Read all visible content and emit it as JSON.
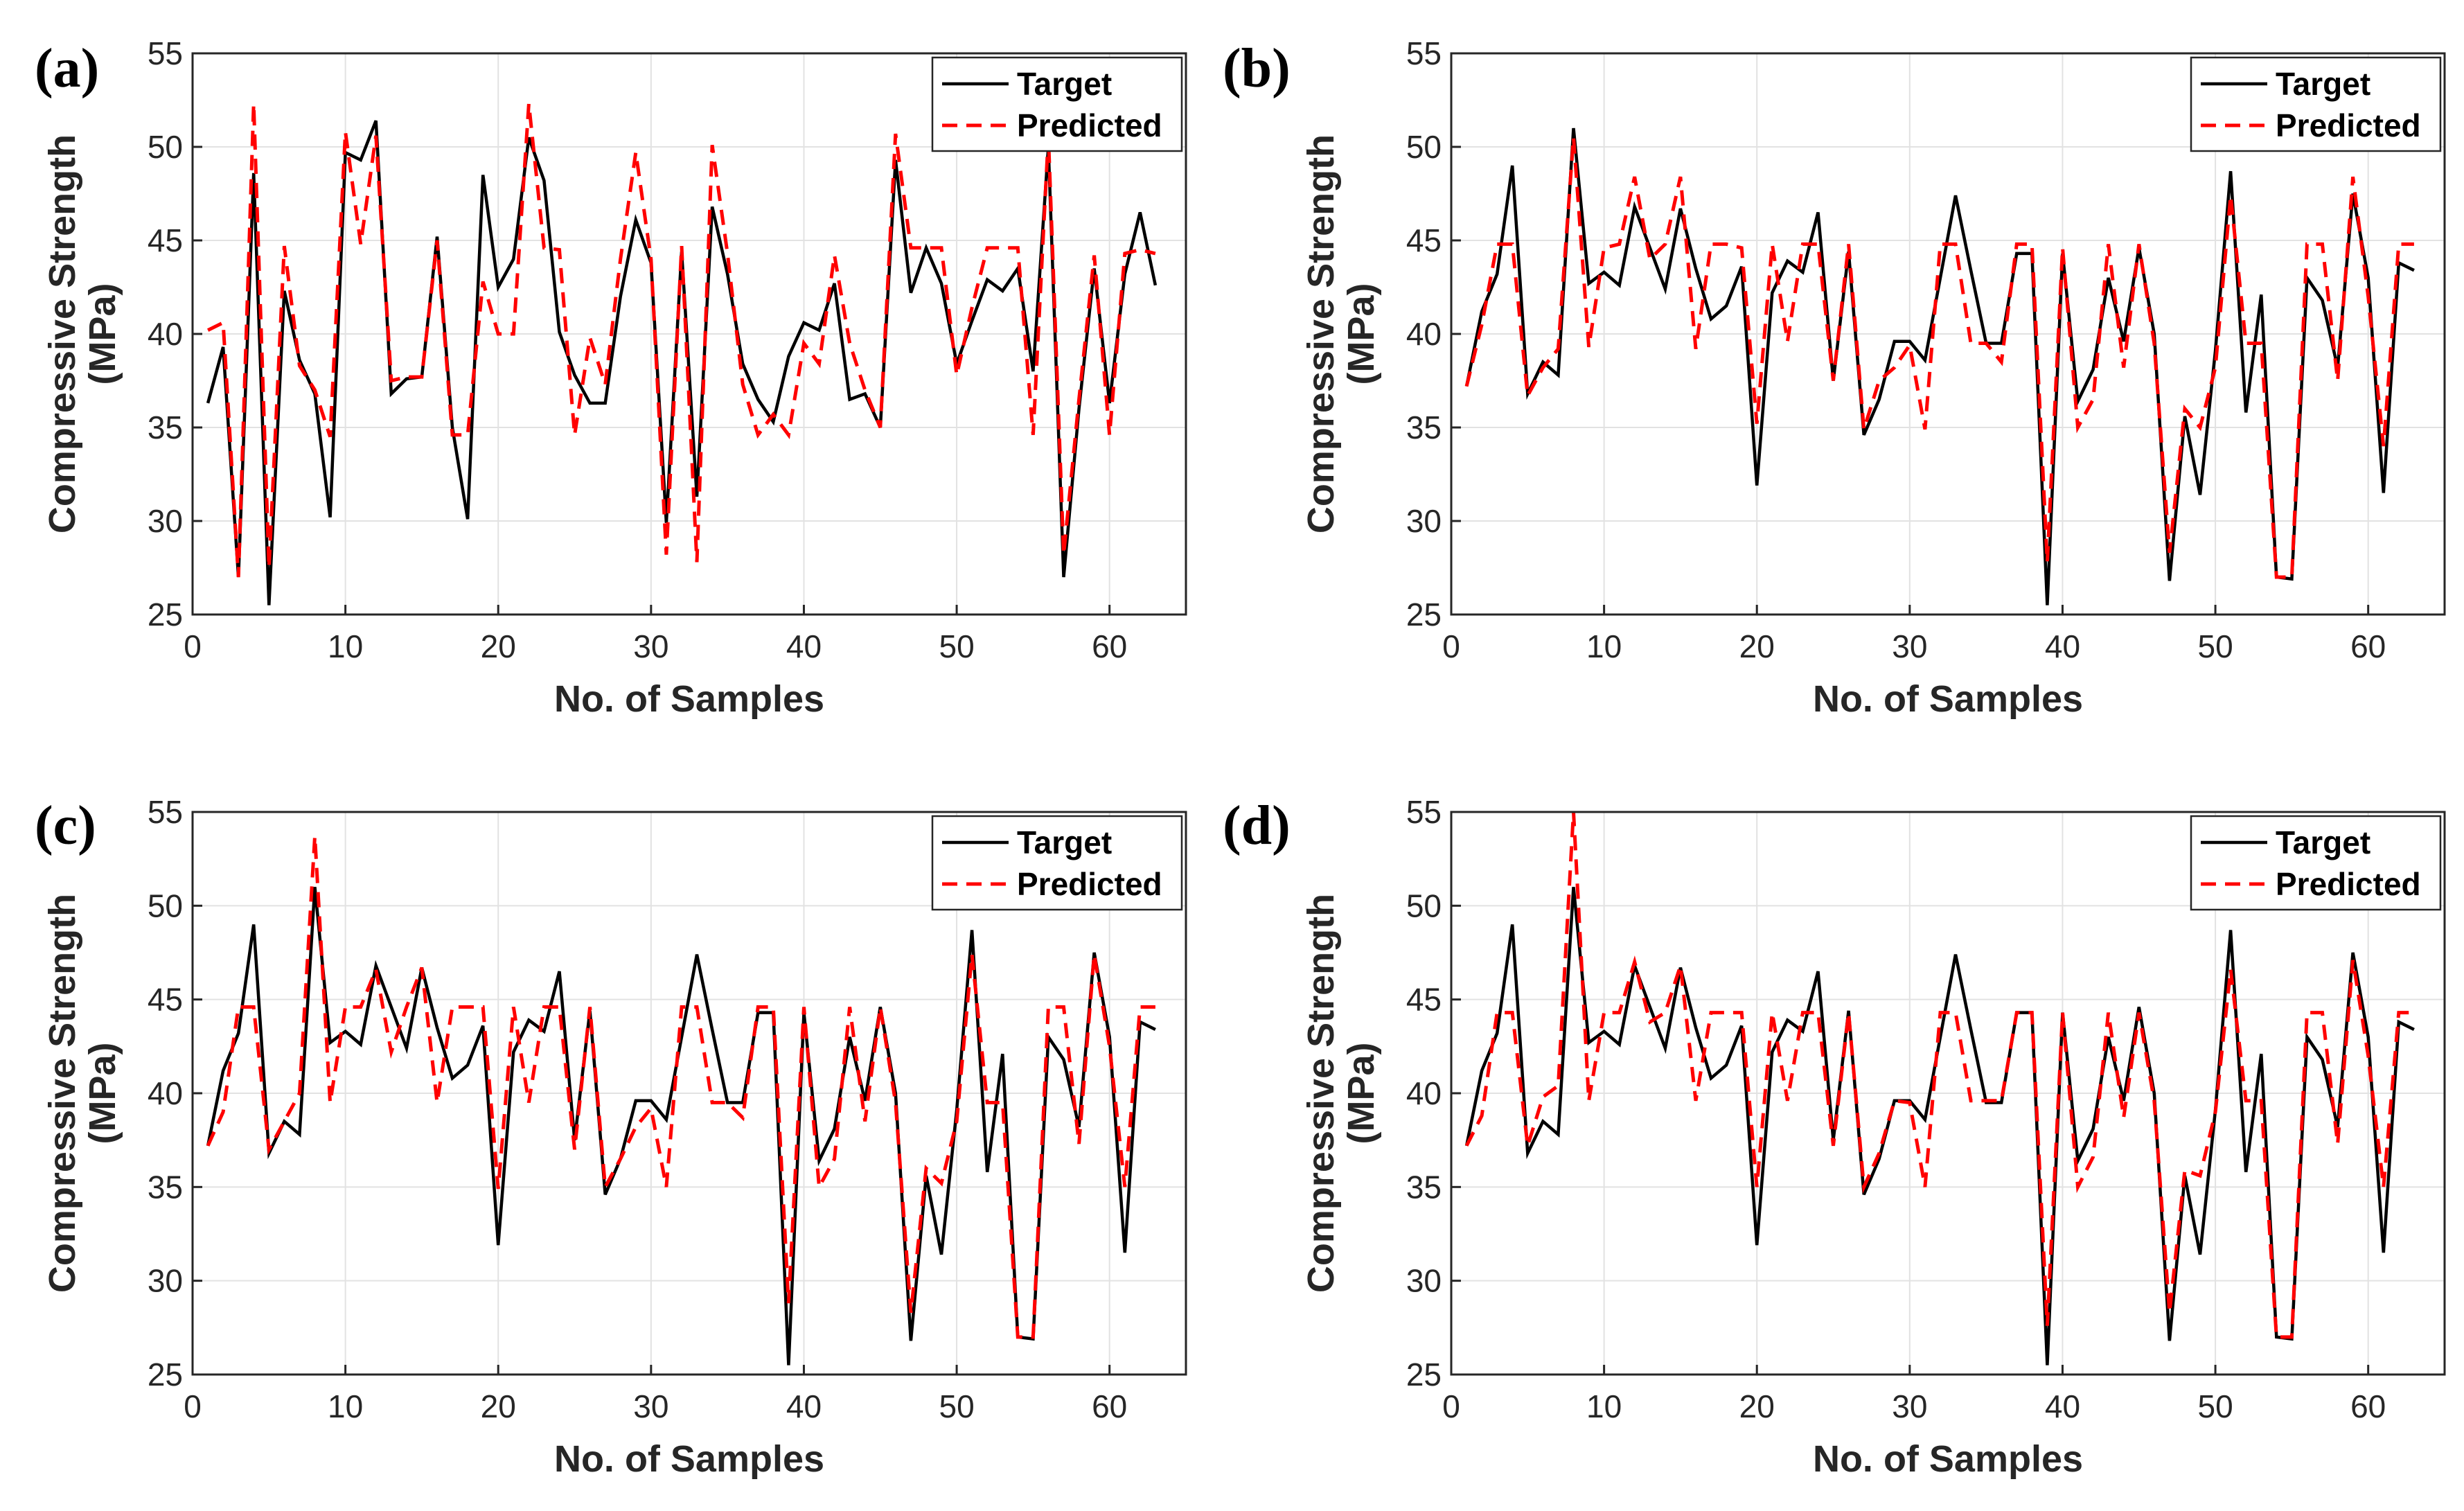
{
  "chart_data": [
    {
      "panel": "(a)",
      "type": "line",
      "xlabel": "No. of Samples",
      "ylabel_line1": "Compressive Strength",
      "ylabel_line2": "(MPa)",
      "xlim": [
        0,
        65
      ],
      "ylim": [
        25,
        55
      ],
      "xticks": [
        0,
        10,
        20,
        30,
        40,
        50,
        60
      ],
      "yticks": [
        25,
        30,
        35,
        40,
        45,
        50,
        55
      ],
      "legend": "top-right",
      "grid": true,
      "series": [
        {
          "name": "Target",
          "style": "solid",
          "color": "#000000",
          "values": [
            36.3,
            39.3,
            27.0,
            48.6,
            25.5,
            42.3,
            38.6,
            36.8,
            30.2,
            49.7,
            49.3,
            51.4,
            36.8,
            37.6,
            37.7,
            45.2,
            35.0,
            30.1,
            48.5,
            42.5,
            44.0,
            50.5,
            48.2,
            40.1,
            37.8,
            36.3,
            36.3,
            42.0,
            46.1,
            43.8,
            29.9,
            44.4,
            31.3,
            46.8,
            43.2,
            38.4,
            36.5,
            35.3,
            38.8,
            40.6,
            40.2,
            42.7,
            36.5,
            36.8,
            35.0,
            49.3,
            42.2,
            44.6,
            42.7,
            38.4,
            40.7,
            42.9,
            42.3,
            43.5,
            38.0,
            50.0,
            27.0,
            36.0,
            43.5,
            36.3,
            43.2,
            46.5,
            42.6
          ]
        },
        {
          "name": "Predicted",
          "style": "dashed",
          "color": "#ff0000",
          "values": [
            40.2,
            40.6,
            27.0,
            52.3,
            27.5,
            44.7,
            38.3,
            37.0,
            34.5,
            50.8,
            44.8,
            50.6,
            37.5,
            37.7,
            37.7,
            45.0,
            34.6,
            34.6,
            42.8,
            40.0,
            40.0,
            52.3,
            44.6,
            44.5,
            34.6,
            39.8,
            37.3,
            44.0,
            49.7,
            44.0,
            28.2,
            44.7,
            27.8,
            50.1,
            44.3,
            37.3,
            34.6,
            35.7,
            34.6,
            39.5,
            38.4,
            44.2,
            39.5,
            37.0,
            35.0,
            50.7,
            44.6,
            44.6,
            44.6,
            37.8,
            41.4,
            44.6,
            44.6,
            44.6,
            34.6,
            50.6,
            28.2,
            36.5,
            44.2,
            34.6,
            44.3,
            44.5,
            44.3
          ]
        }
      ]
    },
    {
      "panel": "(b)",
      "type": "line",
      "xlabel": "No. of Samples",
      "ylabel_line1": "Compressive Strength",
      "ylabel_line2": "(MPa)",
      "xlim": [
        0,
        65
      ],
      "ylim": [
        25,
        55
      ],
      "xticks": [
        0,
        10,
        20,
        30,
        40,
        50,
        60
      ],
      "yticks": [
        25,
        30,
        35,
        40,
        45,
        50,
        55
      ],
      "legend": "top-right",
      "grid": true,
      "series": [
        {
          "name": "Target",
          "style": "solid",
          "color": "#000000",
          "values": [
            37.2,
            41.2,
            43.2,
            49.0,
            36.8,
            38.5,
            37.8,
            51.0,
            42.7,
            43.3,
            42.6,
            46.8,
            44.6,
            42.4,
            46.7,
            43.5,
            40.8,
            41.5,
            43.6,
            31.9,
            42.2,
            43.9,
            43.3,
            46.5,
            37.5,
            44.4,
            34.6,
            36.5,
            39.6,
            39.6,
            38.6,
            43.0,
            47.4,
            43.4,
            39.5,
            39.5,
            44.3,
            44.3,
            25.5,
            44.3,
            36.4,
            38.1,
            43.0,
            39.6,
            44.6,
            40.0,
            26.8,
            35.6,
            31.4,
            39.1,
            48.7,
            35.8,
            42.1,
            27.0,
            26.9,
            43.0,
            41.8,
            38.2,
            47.5,
            43.0,
            31.5,
            43.8,
            43.4
          ]
        },
        {
          "name": "Predicted",
          "style": "dashed",
          "color": "#ff0000",
          "values": [
            37.2,
            40.5,
            44.8,
            44.8,
            36.7,
            38.2,
            39.2,
            50.5,
            39.3,
            44.6,
            44.8,
            48.4,
            44.0,
            44.8,
            48.4,
            39.2,
            44.8,
            44.8,
            44.6,
            35.2,
            44.8,
            39.6,
            44.8,
            44.8,
            37.5,
            44.8,
            34.9,
            37.5,
            38.2,
            39.4,
            34.9,
            44.8,
            44.8,
            39.5,
            39.5,
            38.5,
            44.8,
            44.8,
            27.8,
            44.6,
            35.0,
            36.5,
            44.8,
            38.2,
            44.8,
            39.5,
            28.3,
            36.0,
            35.0,
            38.2,
            47.4,
            39.5,
            39.5,
            27.0,
            27.0,
            44.8,
            44.8,
            37.5,
            48.4,
            42.0,
            34.0,
            44.8,
            44.8
          ]
        }
      ]
    },
    {
      "panel": "(c)",
      "type": "line",
      "xlabel": "No. of Samples",
      "ylabel_line1": "Compressive Strength",
      "ylabel_line2": "(MPa)",
      "xlim": [
        0,
        65
      ],
      "ylim": [
        25,
        55
      ],
      "xticks": [
        0,
        10,
        20,
        30,
        40,
        50,
        60
      ],
      "yticks": [
        25,
        30,
        35,
        40,
        45,
        50,
        55
      ],
      "legend": "top-right",
      "grid": true,
      "series": [
        {
          "name": "Target",
          "style": "solid",
          "color": "#000000",
          "values": [
            37.2,
            41.2,
            43.2,
            49.0,
            36.8,
            38.5,
            37.8,
            51.0,
            42.7,
            43.3,
            42.6,
            46.8,
            44.6,
            42.4,
            46.7,
            43.5,
            40.8,
            41.5,
            43.6,
            31.9,
            42.2,
            43.9,
            43.3,
            46.5,
            37.5,
            44.4,
            34.6,
            36.5,
            39.6,
            39.6,
            38.6,
            43.0,
            47.4,
            43.4,
            39.5,
            39.5,
            44.3,
            44.3,
            25.5,
            44.3,
            36.4,
            38.1,
            43.0,
            39.6,
            44.6,
            40.0,
            26.8,
            35.6,
            31.4,
            39.1,
            48.7,
            35.8,
            42.1,
            27.0,
            26.9,
            43.0,
            41.8,
            38.2,
            47.5,
            43.0,
            31.5,
            43.8,
            43.4
          ]
        },
        {
          "name": "Predicted",
          "style": "dashed",
          "color": "#ff0000",
          "values": [
            37.2,
            39.0,
            44.6,
            44.6,
            37.0,
            38.5,
            40.0,
            53.7,
            39.5,
            44.6,
            44.6,
            46.6,
            42.2,
            44.6,
            46.7,
            39.5,
            44.6,
            44.6,
            44.6,
            34.9,
            44.6,
            39.5,
            44.6,
            44.6,
            37.0,
            44.6,
            35.0,
            36.5,
            38.2,
            39.2,
            35.0,
            44.6,
            44.6,
            39.5,
            39.5,
            38.7,
            44.6,
            44.6,
            28.8,
            44.6,
            35.0,
            36.5,
            44.6,
            38.5,
            44.6,
            39.5,
            28.3,
            36.0,
            35.2,
            38.5,
            47.4,
            39.5,
            39.5,
            27.0,
            27.0,
            44.6,
            44.6,
            37.3,
            47.4,
            42.5,
            35.0,
            44.6,
            44.6
          ]
        }
      ]
    },
    {
      "panel": "(d)",
      "type": "line",
      "xlabel": "No. of Samples",
      "ylabel_line1": "Compressive Strength",
      "ylabel_line2": "(MPa)",
      "xlim": [
        0,
        65
      ],
      "ylim": [
        25,
        55
      ],
      "xticks": [
        0,
        10,
        20,
        30,
        40,
        50,
        60
      ],
      "yticks": [
        25,
        30,
        35,
        40,
        45,
        50,
        55
      ],
      "legend": "top-right",
      "grid": true,
      "series": [
        {
          "name": "Target",
          "style": "solid",
          "color": "#000000",
          "values": [
            37.2,
            41.2,
            43.2,
            49.0,
            36.8,
            38.5,
            37.8,
            51.0,
            42.7,
            43.3,
            42.6,
            46.8,
            44.6,
            42.4,
            46.7,
            43.5,
            40.8,
            41.5,
            43.6,
            31.9,
            42.2,
            43.9,
            43.3,
            46.5,
            37.5,
            44.4,
            34.6,
            36.5,
            39.6,
            39.6,
            38.6,
            43.0,
            47.4,
            43.4,
            39.5,
            39.5,
            44.3,
            44.3,
            25.5,
            44.3,
            36.4,
            38.1,
            43.0,
            39.6,
            44.6,
            40.0,
            26.8,
            35.6,
            31.4,
            39.1,
            48.7,
            35.8,
            42.1,
            27.0,
            26.9,
            43.0,
            41.8,
            38.2,
            47.5,
            43.0,
            31.5,
            43.8,
            43.4
          ]
        },
        {
          "name": "Predicted",
          "style": "dashed",
          "color": "#ff0000",
          "values": [
            37.2,
            38.8,
            44.3,
            44.3,
            37.2,
            39.8,
            40.4,
            55.0,
            39.6,
            44.3,
            44.3,
            47.0,
            43.8,
            44.3,
            46.8,
            39.6,
            44.3,
            44.3,
            44.3,
            35.0,
            44.3,
            39.6,
            44.3,
            44.3,
            37.2,
            44.3,
            35.0,
            36.8,
            39.6,
            39.5,
            35.0,
            44.3,
            44.3,
            39.6,
            39.6,
            39.6,
            44.3,
            44.3,
            27.6,
            44.3,
            35.0,
            36.6,
            44.3,
            38.7,
            44.3,
            39.6,
            28.3,
            35.9,
            35.6,
            39.0,
            46.6,
            39.6,
            39.6,
            27.0,
            27.0,
            44.3,
            44.3,
            37.3,
            47.1,
            42.0,
            35.0,
            44.3,
            44.3
          ]
        }
      ]
    }
  ]
}
